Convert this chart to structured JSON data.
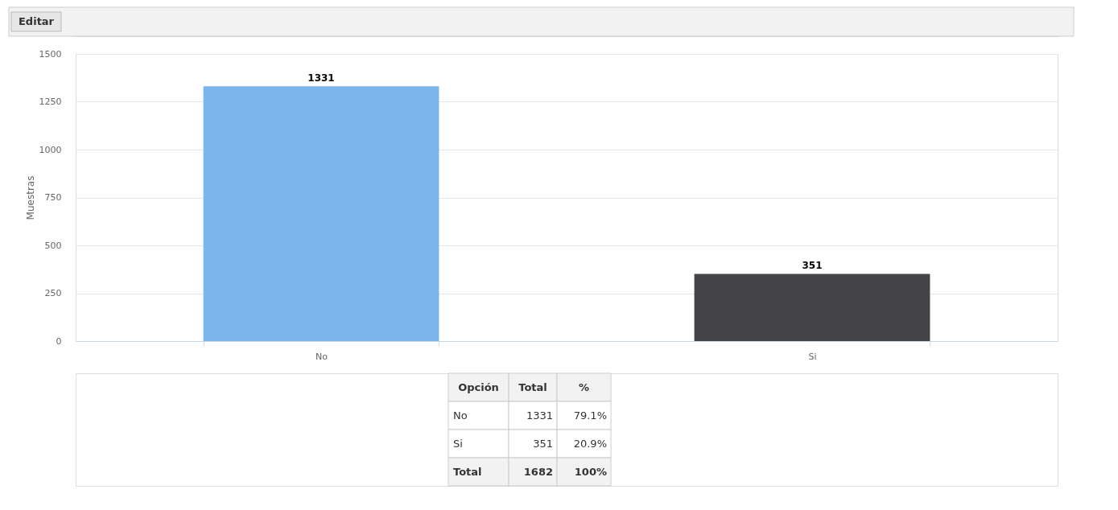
{
  "chart_data": {
    "type": "bar",
    "ylabel": "Muestras",
    "categories": [
      "No",
      "Si"
    ],
    "values": [
      1331,
      351
    ],
    "colors": [
      "#7cb5ec",
      "#434348"
    ],
    "ylim": [
      0,
      1500
    ],
    "yticks": [
      0,
      250,
      500,
      750,
      1000,
      1250,
      1500
    ],
    "grid": "y",
    "data_labels": true,
    "annotations": [
      "Editar",
      "Opción",
      "Total",
      "%",
      "No",
      "1331",
      "79.1%",
      "Si",
      "351",
      "20.9%",
      "Total",
      "1682",
      "100%"
    ]
  }
}
